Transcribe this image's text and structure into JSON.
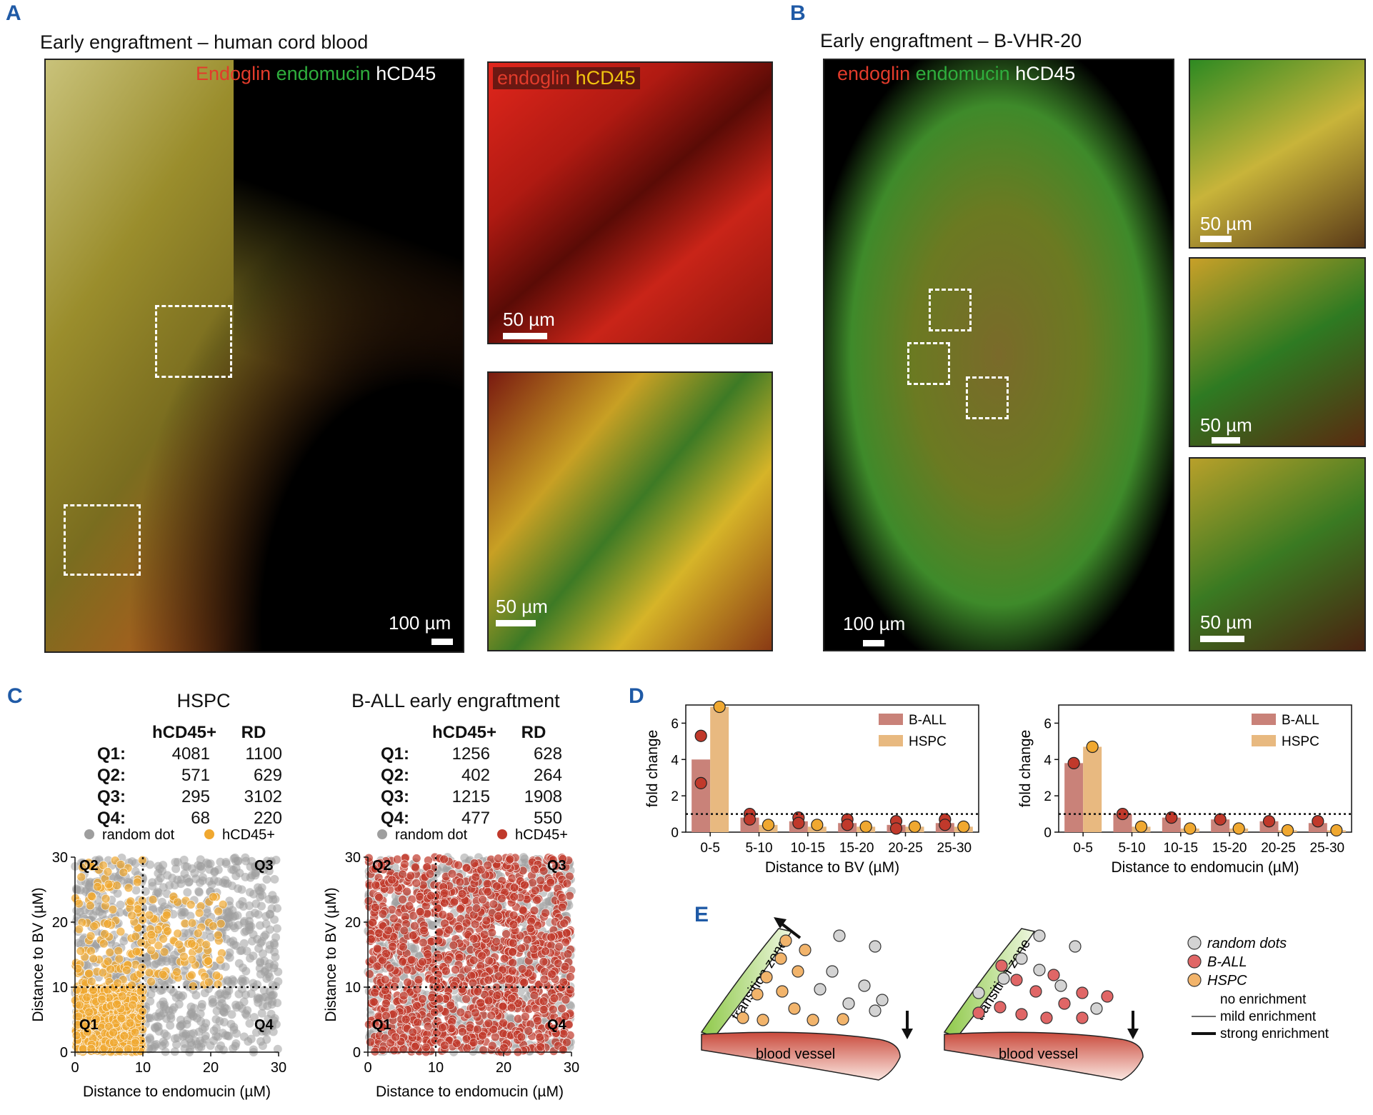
{
  "panel_letters": {
    "a": "A",
    "b": "B",
    "c": "C",
    "d": "D",
    "e": "E"
  },
  "panel_a": {
    "title": "Early engraftment – human cord blood",
    "main_label": {
      "red": "Endoglin",
      "green": "endomucin",
      "white": "hCD45"
    },
    "main_scale": "100 µm",
    "inset1_label": {
      "red": "endoglin",
      "yellow": "hCD45"
    },
    "inset1_scale": "50 µm",
    "inset2_scale": "50 µm"
  },
  "panel_b": {
    "title": "Early engraftment – B-VHR-20",
    "main_label": {
      "red": "endoglin",
      "green": "endomucin",
      "white": "hCD45"
    },
    "main_scale": "100 µm",
    "inset_scales": [
      "50 µm",
      "50 µm",
      "50 µm"
    ]
  },
  "panel_c": {
    "tables": [
      {
        "title": "HSPC",
        "col1": "hCD45+",
        "col2": "RD",
        "rows": [
          {
            "q": "Q1:",
            "a": "4081",
            "b": "1100"
          },
          {
            "q": "Q2:",
            "a": "571",
            "b": "629"
          },
          {
            "q": "Q3:",
            "a": "295",
            "b": "3102"
          },
          {
            "q": "Q4:",
            "a": "68",
            "b": "220"
          }
        ]
      },
      {
        "title": "B-ALL early engraftment",
        "col1": "hCD45+",
        "col2": "RD",
        "rows": [
          {
            "q": "Q1:",
            "a": "1256",
            "b": "628"
          },
          {
            "q": "Q2:",
            "a": "402",
            "b": "264"
          },
          {
            "q": "Q3:",
            "a": "1215",
            "b": "1908"
          },
          {
            "q": "Q4:",
            "a": "477",
            "b": "550"
          }
        ]
      }
    ]
  },
  "panel_e": {
    "zone_label": "transition zone",
    "vessel_label": "blood vessel",
    "legend": {
      "random": "random dots",
      "ball": "B-ALL",
      "hspc": "HSPC",
      "none": "no enrichment",
      "mild": "mild enrichment",
      "strong": "strong enrichment"
    },
    "colors": {
      "random": "#d3d3d3",
      "ball": "#e06666",
      "hspc": "#f2b46b"
    }
  },
  "chart_data": [
    {
      "type": "scatter",
      "panel": "C-left",
      "xlabel": "Distance to endomucin (µM)",
      "ylabel": "Distance to BV (µM)",
      "xlim": [
        0,
        30
      ],
      "ylim": [
        0,
        30
      ],
      "xticks": [
        0,
        10,
        20,
        30
      ],
      "yticks": [
        0,
        10,
        20,
        30
      ],
      "threshold_x": 10,
      "threshold_y": 10,
      "quadrant_labels": [
        "Q1",
        "Q2",
        "Q3",
        "Q4"
      ],
      "series": [
        {
          "name": "random dot",
          "color": "#9e9e9e"
        },
        {
          "name": "hCD45+",
          "color": "#f0a830"
        }
      ]
    },
    {
      "type": "scatter",
      "panel": "C-right",
      "xlabel": "Distance to endomucin (µM)",
      "ylabel": "Distance to BV (µM)",
      "xlim": [
        0,
        30
      ],
      "ylim": [
        0,
        30
      ],
      "xticks": [
        0,
        10,
        20,
        30
      ],
      "yticks": [
        0,
        10,
        20,
        30
      ],
      "threshold_x": 10,
      "threshold_y": 10,
      "quadrant_labels": [
        "Q1",
        "Q2",
        "Q3",
        "Q4"
      ],
      "series": [
        {
          "name": "random dot",
          "color": "#9e9e9e"
        },
        {
          "name": "hCD45+",
          "color": "#c0392b"
        }
      ]
    },
    {
      "type": "bar",
      "panel": "D-left",
      "categories": [
        "0-5",
        "5-10",
        "10-15",
        "15-20",
        "20-25",
        "25-30"
      ],
      "xlabel": "Distance to BV (µM)",
      "ylabel": "fold change",
      "ylim": [
        0,
        7
      ],
      "yticks": [
        0,
        2,
        4,
        6
      ],
      "reference_line": 1,
      "series": [
        {
          "name": "B-ALL",
          "color": "#c98279",
          "point_color": "#c0392b",
          "values": [
            4.0,
            0.8,
            0.6,
            0.5,
            0.4,
            0.5
          ],
          "points": [
            [
              5.3,
              2.7
            ],
            [
              1.0,
              0.7
            ],
            [
              0.8,
              0.5
            ],
            [
              0.7,
              0.4
            ],
            [
              0.6,
              0.2
            ],
            [
              0.7,
              0.4
            ]
          ]
        },
        {
          "name": "HSPC",
          "color": "#e8b980",
          "point_color": "#f0a830",
          "values": [
            6.9,
            0.4,
            0.3,
            0.3,
            0.3,
            0.3
          ],
          "points": [
            [
              6.9
            ],
            [
              0.4
            ],
            [
              0.4
            ],
            [
              0.3
            ],
            [
              0.3
            ],
            [
              0.3
            ]
          ]
        }
      ]
    },
    {
      "type": "bar",
      "panel": "D-right",
      "categories": [
        "0-5",
        "5-10",
        "10-15",
        "15-20",
        "20-25",
        "25-30"
      ],
      "xlabel": "Distance to endomucin (µM)",
      "ylabel": "fold change",
      "ylim": [
        0,
        7
      ],
      "yticks": [
        0,
        2,
        4,
        6
      ],
      "reference_line": 1,
      "series": [
        {
          "name": "B-ALL",
          "color": "#c98279",
          "point_color": "#c0392b",
          "values": [
            3.8,
            1.0,
            0.8,
            0.7,
            0.6,
            0.5
          ],
          "points": [
            [
              3.8
            ],
            [
              1.0
            ],
            [
              0.8
            ],
            [
              0.7
            ],
            [
              0.6
            ],
            [
              0.6
            ]
          ]
        },
        {
          "name": "HSPC",
          "color": "#e8b980",
          "point_color": "#f0a830",
          "values": [
            4.7,
            0.3,
            0.2,
            0.2,
            0.1,
            0.1
          ],
          "points": [
            [
              4.7
            ],
            [
              0.3
            ],
            [
              0.2
            ],
            [
              0.2
            ],
            [
              0.1
            ],
            [
              0.1
            ]
          ]
        }
      ]
    }
  ]
}
